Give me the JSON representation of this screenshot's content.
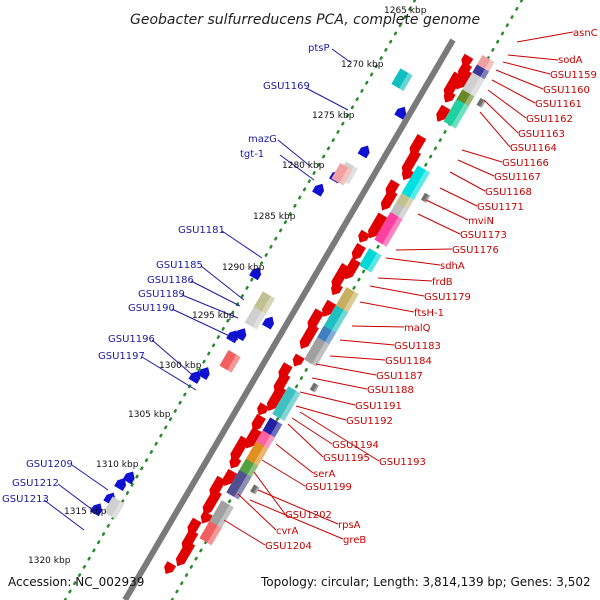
{
  "title": "Geobacter sulfurreducens PCA, complete genome",
  "footer": {
    "accession": "Accession: NC_002939",
    "topology": "Topology: circular; Length: 3,814,139 bp; Genes: 3,502"
  },
  "kbp_labels": [
    "1265 kbp",
    "1270 kbp",
    "1275 kbp",
    "1280 kbp",
    "1285 kbp",
    "1290 kbp",
    "1295 kbp",
    "1300 kbp",
    "1305 kbp",
    "1310 kbp",
    "1315 kbp",
    "1320 kbp"
  ],
  "forward_genes": [
    "asnC",
    "sodA",
    "GSU1159",
    "GSU1160",
    "GSU1161",
    "GSU1162",
    "GSU1163",
    "GSU1164",
    "GSU1166",
    "GSU1167",
    "GSU1168",
    "GSU1171",
    "mviN",
    "GSU1173",
    "GSU1176",
    "sdhA",
    "frdB",
    "GSU1179",
    "ftsH-1",
    "malQ",
    "GSU1183",
    "GSU1184",
    "GSU1187",
    "GSU1188",
    "GSU1191",
    "GSU1192",
    "GSU1194",
    "GSU1195",
    "GSU1193",
    "serA",
    "GSU1199",
    "GSU1202",
    "rpsA",
    "greB",
    "cvrA",
    "GSU1204"
  ],
  "reverse_genes": [
    "ptsP",
    "GSU1169",
    "mazG",
    "tgt-1",
    "GSU1181",
    "GSU1185",
    "GSU1186",
    "GSU1189",
    "GSU1190",
    "GSU1196",
    "GSU1197",
    "GSU1209",
    "GSU1212",
    "GSU1213"
  ],
  "colors": {
    "forward": "#e00000",
    "reverse": "#1010d0",
    "forward_label": "#c80000",
    "reverse_label": "#1a1aa6",
    "axis": "#808080",
    "tick_dots": "#2a8a2a"
  }
}
